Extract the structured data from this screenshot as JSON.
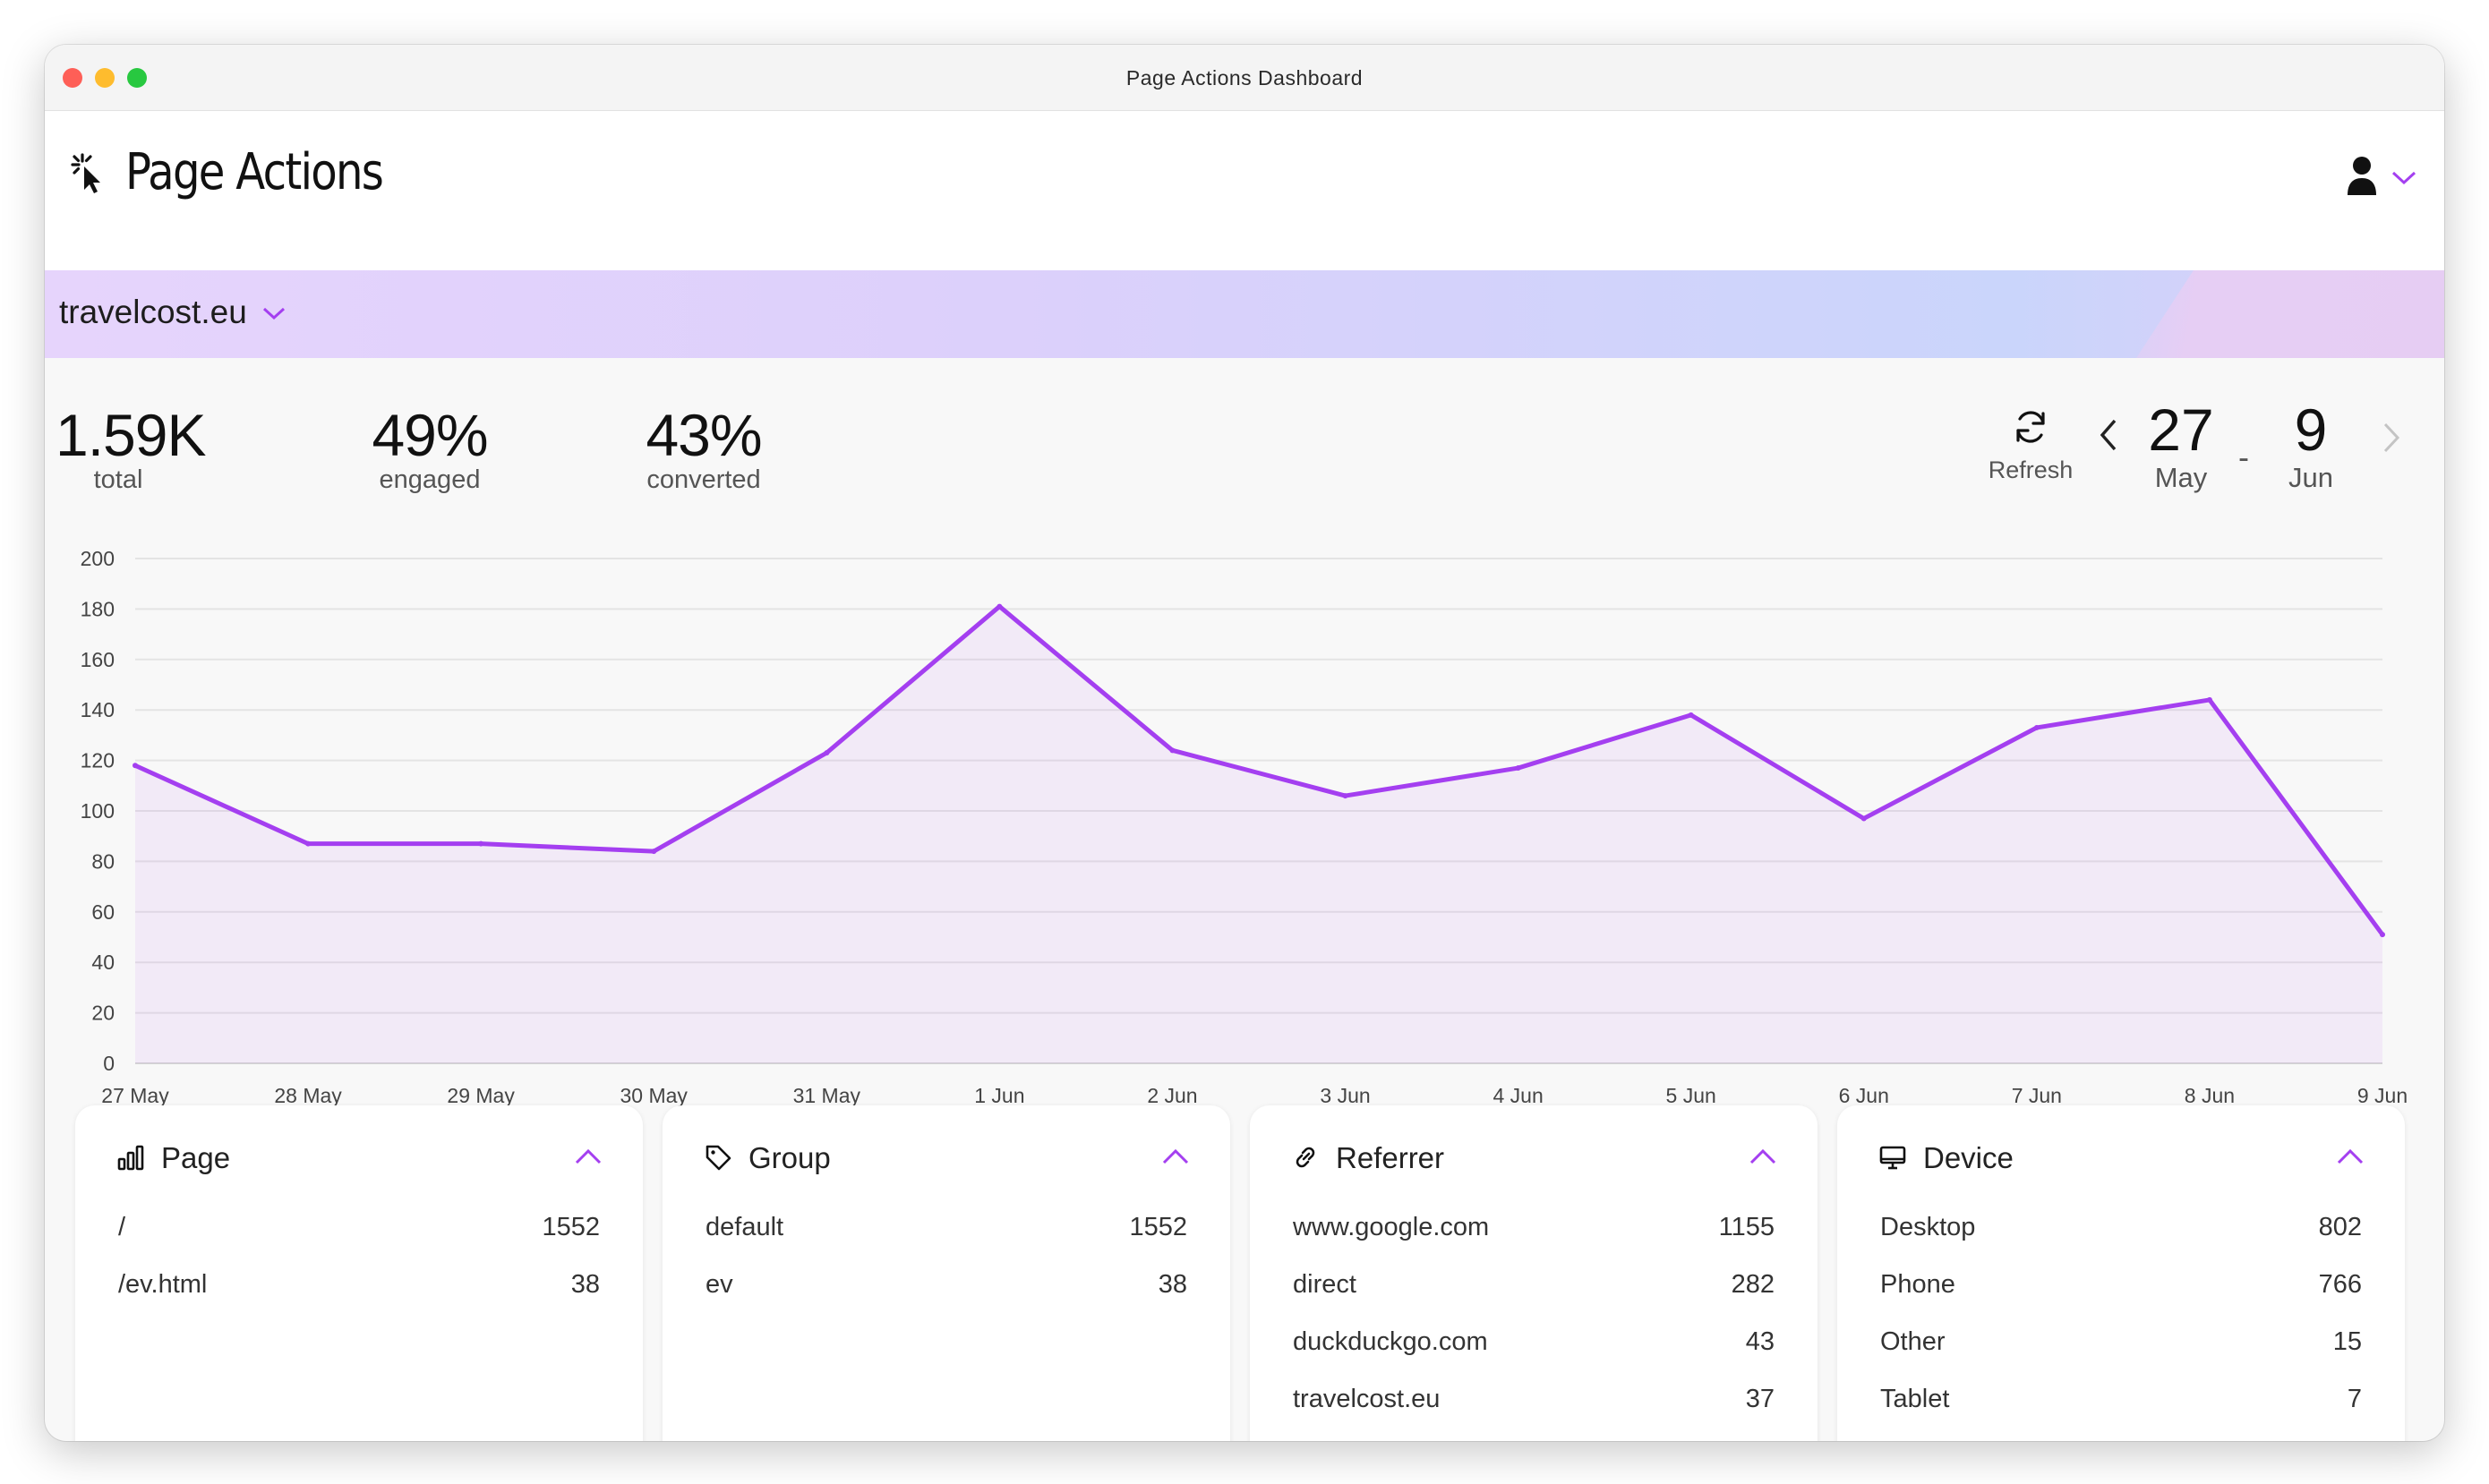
{
  "window": {
    "title": "Page Actions Dashboard"
  },
  "app": {
    "title": "Page Actions",
    "logo_icon": "cursor-click-icon",
    "user_icon": "user-icon",
    "accent_color": "#a43ff0"
  },
  "site": {
    "name": "travelcost.eu"
  },
  "stats": [
    {
      "value": "1.59K",
      "label": "total"
    },
    {
      "value": "49%",
      "label": "engaged"
    },
    {
      "value": "43%",
      "label": "converted"
    }
  ],
  "controls": {
    "refresh_label": "Refresh",
    "start": {
      "day": "27",
      "month": "May"
    },
    "separator": "-",
    "end": {
      "day": "9",
      "month": "Jun"
    }
  },
  "chart_data": {
    "type": "area",
    "categories": [
      "27 May",
      "28 May",
      "29 May",
      "30 May",
      "31 May",
      "1 Jun",
      "2 Jun",
      "3 Jun",
      "4 Jun",
      "5 Jun",
      "6 Jun",
      "7 Jun",
      "8 Jun",
      "9 Jun"
    ],
    "values": [
      118,
      87,
      87,
      84,
      123,
      181,
      124,
      106,
      117,
      138,
      97,
      133,
      144,
      51
    ],
    "ylim": [
      0,
      200
    ],
    "yticks": [
      0,
      20,
      40,
      60,
      80,
      100,
      120,
      140,
      160,
      180,
      200
    ],
    "grid": true,
    "color": "#a43ff0"
  },
  "cards": [
    {
      "title": "Page",
      "icon": "bar-chart-icon",
      "rows": [
        {
          "label": "/",
          "value": "1552"
        },
        {
          "label": "/ev.html",
          "value": "38"
        }
      ]
    },
    {
      "title": "Group",
      "icon": "tag-icon",
      "rows": [
        {
          "label": "default",
          "value": "1552"
        },
        {
          "label": "ev",
          "value": "38"
        }
      ]
    },
    {
      "title": "Referrer",
      "icon": "link-icon",
      "rows": [
        {
          "label": "www.google.com",
          "value": "1155"
        },
        {
          "label": "direct",
          "value": "282"
        },
        {
          "label": "duckduckgo.com",
          "value": "43"
        },
        {
          "label": "travelcost.eu",
          "value": "37"
        }
      ]
    },
    {
      "title": "Device",
      "icon": "monitor-icon",
      "rows": [
        {
          "label": "Desktop",
          "value": "802"
        },
        {
          "label": "Phone",
          "value": "766"
        },
        {
          "label": "Other",
          "value": "15"
        },
        {
          "label": "Tablet",
          "value": "7"
        }
      ]
    }
  ]
}
